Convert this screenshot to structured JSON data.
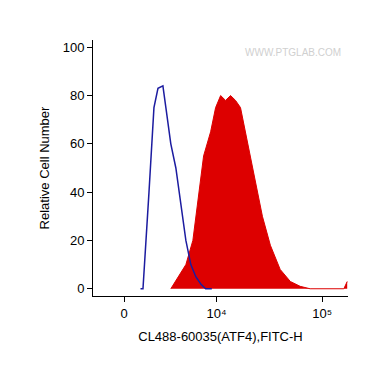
{
  "chart_data": {
    "type": "histogram",
    "xlabel": "CL488-60035(ATF4),FITC-H",
    "ylabel": "Relative Cell Number",
    "annotations": [
      "WWW.PTGLAB.COM"
    ],
    "xlim": [
      -2000,
      175000
    ],
    "xticks": [
      0,
      {
        "value": 10000,
        "label": "10⁴"
      },
      {
        "value": 100000,
        "label": "10⁵"
      }
    ],
    "ylim": [
      -3,
      103
    ],
    "yticks": [
      0,
      20,
      40,
      60,
      80,
      100
    ],
    "grid": false,
    "series": [
      {
        "type": "line",
        "color": "#1c1ca0",
        "x": [
          1000,
          1160,
          1560,
          1910,
          2210,
          2600,
          2850,
          3290,
          3780,
          4340,
          4890,
          5520,
          6220,
          6990,
          7820,
          9000
        ],
        "values": [
          0,
          0,
          40,
          75,
          83,
          84,
          75,
          60,
          50,
          35,
          20,
          10,
          5,
          2,
          0,
          0
        ]
      },
      {
        "type": "area",
        "color": "#dd0000",
        "x": [
          3290,
          4890,
          5800,
          6660,
          7460,
          8760,
          9800,
          10970,
          12240,
          13670,
          15250,
          17010,
          18950,
          21160,
          23590,
          27430,
          32590,
          40330,
          50270,
          62150,
          77060,
          160000,
          172000
        ],
        "values": [
          0,
          10,
          20,
          40,
          55,
          65,
          75,
          80,
          78,
          80,
          78,
          75,
          65,
          55,
          45,
          30,
          18,
          8,
          3,
          1,
          0,
          0,
          3
        ]
      }
    ]
  }
}
